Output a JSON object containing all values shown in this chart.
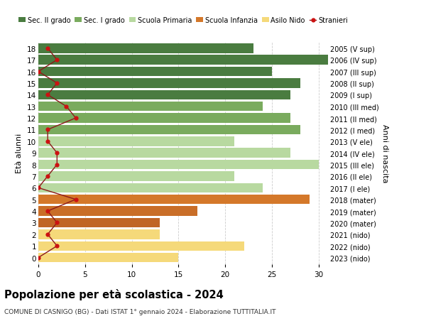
{
  "ages": [
    18,
    17,
    16,
    15,
    14,
    13,
    12,
    11,
    10,
    9,
    8,
    7,
    6,
    5,
    4,
    3,
    2,
    1,
    0
  ],
  "years_labels": [
    "2005 (V sup)",
    "2006 (IV sup)",
    "2007 (III sup)",
    "2008 (II sup)",
    "2009 (I sup)",
    "2010 (III med)",
    "2011 (II med)",
    "2012 (I med)",
    "2013 (V ele)",
    "2014 (IV ele)",
    "2015 (III ele)",
    "2016 (II ele)",
    "2017 (I ele)",
    "2018 (mater)",
    "2019 (mater)",
    "2020 (mater)",
    "2021 (nido)",
    "2022 (nido)",
    "2023 (nido)"
  ],
  "bar_values": [
    23,
    31,
    25,
    28,
    27,
    24,
    27,
    28,
    21,
    27,
    30,
    21,
    24,
    29,
    17,
    13,
    13,
    22,
    15
  ],
  "bar_colors": [
    "#4a7c40",
    "#4a7c40",
    "#4a7c40",
    "#4a7c40",
    "#4a7c40",
    "#7aab5e",
    "#7aab5e",
    "#7aab5e",
    "#b8d9a0",
    "#b8d9a0",
    "#b8d9a0",
    "#b8d9a0",
    "#b8d9a0",
    "#d4782a",
    "#c96e28",
    "#c06525",
    "#f5d97a",
    "#f5d97a",
    "#f5d97a"
  ],
  "stranieri_values": [
    1,
    2,
    0,
    2,
    1,
    3,
    4,
    1,
    1,
    2,
    2,
    1,
    0,
    4,
    1,
    2,
    1,
    2,
    0
  ],
  "legend_labels": [
    "Sec. II grado",
    "Sec. I grado",
    "Scuola Primaria",
    "Scuola Infanzia",
    "Asilo Nido",
    "Stranieri"
  ],
  "legend_colors": [
    "#4a7c40",
    "#7aab5e",
    "#b8d9a0",
    "#d4782a",
    "#f5d97a",
    "#aa1111"
  ],
  "title": "Popolazione per età scolastica - 2024",
  "subtitle": "COMUNE DI CASNIGO (BG) - Dati ISTAT 1° gennaio 2024 - Elaborazione TUTTITALIA.IT",
  "ylabel_left": "Età alunni",
  "ylabel_right": "Anni di nascita",
  "xlim": [
    0,
    31
  ],
  "ylim_min": -0.55,
  "ylim_max": 18.55,
  "background_color": "#ffffff",
  "grid_color": "#cccccc"
}
